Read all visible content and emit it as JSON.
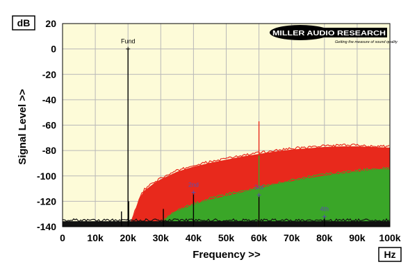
{
  "chart_data": {
    "type": "line",
    "title": "",
    "xlabel": "Frequency >>",
    "ylabel": "Signal Level >>",
    "x_unit": "Hz",
    "y_unit": "dB",
    "xlim": [
      0,
      100000
    ],
    "ylim": [
      -140,
      20
    ],
    "grid": true,
    "x_ticks": [
      0,
      10000,
      20000,
      30000,
      40000,
      50000,
      60000,
      70000,
      80000,
      90000,
      100000
    ],
    "x_tick_labels": [
      "0",
      "10k",
      "20k",
      "30k",
      "40k",
      "50k",
      "60k",
      "70k",
      "80k",
      "90k",
      "100k"
    ],
    "y_ticks": [
      20,
      0,
      -20,
      -40,
      -60,
      -80,
      -100,
      -120,
      -140
    ],
    "y_tick_labels": [
      "20",
      "0",
      "-20",
      "-40",
      "-60",
      "-80",
      "-100",
      "-120",
      "-140"
    ],
    "series": [
      {
        "color": "#e8291c",
        "x": [
          0,
          20000,
          21000,
          22000,
          23000,
          24000,
          25000,
          26000,
          28000,
          30000,
          35000,
          40000,
          45000,
          50000,
          55000,
          60000,
          65000,
          70000,
          75000,
          80000,
          85000,
          90000,
          95000,
          100000
        ],
        "y": [
          -140,
          -140,
          -137,
          -130,
          -122,
          -116,
          -112,
          -110,
          -106,
          -103,
          -97,
          -93,
          -90,
          -87.5,
          -85,
          -83,
          -81,
          -79.5,
          -78.5,
          -77.5,
          -77,
          -77,
          -77.5,
          -78
        ]
      },
      {
        "color": "#3aa628",
        "x": [
          0,
          30000,
          31000,
          33000,
          35000,
          40000,
          45000,
          50000,
          55000,
          60000,
          65000,
          70000,
          75000,
          80000,
          85000,
          90000,
          95000,
          100000
        ],
        "y": [
          -140,
          -140,
          -136,
          -131,
          -128,
          -123,
          -119,
          -116,
          -113,
          -110,
          -107,
          -104.5,
          -102,
          -100,
          -98.5,
          -97,
          -95.5,
          -95
        ]
      },
      {
        "color": "#111111",
        "x": [
          0,
          100000
        ],
        "y": [
          -136,
          -136
        ]
      }
    ],
    "harmonics": [
      {
        "label": "Fund",
        "x": 20000,
        "y": 0,
        "color": "#000000"
      },
      {
        "label": "2nd",
        "x": 40000,
        "y": -113,
        "color": "#5a4fb0"
      },
      {
        "label": "3rd",
        "x": 60000,
        "y": -115,
        "color": "#5a4fb0"
      },
      {
        "label": "4th",
        "x": 80000,
        "y": -132,
        "color": "#5a4fb0"
      }
    ],
    "spikes": [
      {
        "x": 20000,
        "y": 0,
        "color": "#000000"
      },
      {
        "x": 20200,
        "y": -120,
        "color": "#000000"
      },
      {
        "x": 40000,
        "y": -113,
        "color": "#000000"
      },
      {
        "x": 60000,
        "y": -57,
        "color": "#e8291c"
      },
      {
        "x": 60000,
        "y": -84,
        "color": "#3aa628"
      },
      {
        "x": 60000,
        "y": -115,
        "color": "#000000"
      },
      {
        "x": 80000,
        "y": -132,
        "color": "#000000"
      },
      {
        "x": 30800,
        "y": -126,
        "color": "#000000"
      },
      {
        "x": 18000,
        "y": -128,
        "color": "#000000"
      }
    ],
    "colors": {
      "plot_bg": "#fdfbd8",
      "grid": "#b8b8b8",
      "red": "#e8291c",
      "green": "#3aa628",
      "black": "#111111"
    }
  },
  "logo": {
    "brand": "MILLER AUDIO RESEARCH",
    "tagline": "Getting the measure of sound quality"
  }
}
